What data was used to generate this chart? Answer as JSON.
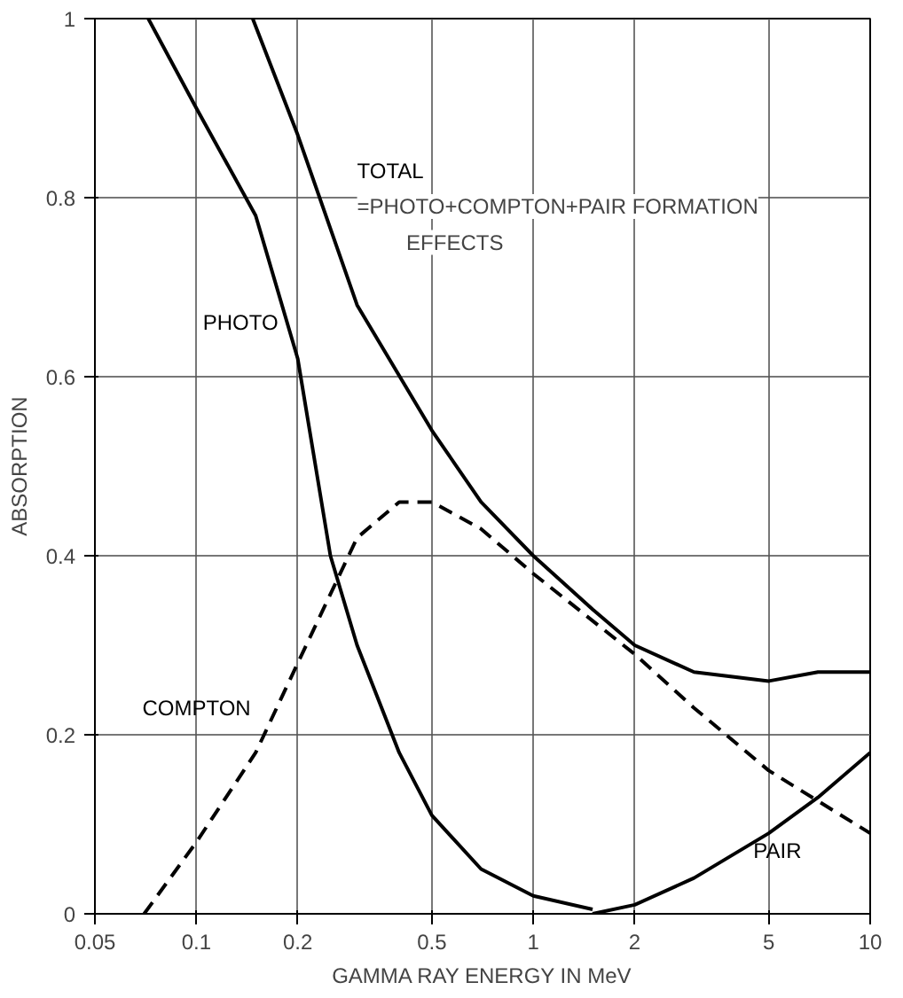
{
  "chart_data": {
    "type": "line",
    "xlabel": "GAMMA RAY ENERGY IN MeV",
    "ylabel": "ABSORPTION",
    "log": "x",
    "xlim": [
      0.05,
      10
    ],
    "ylim": [
      0,
      1
    ],
    "xticks": [
      0.05,
      0.1,
      0.2,
      0.5,
      1,
      2,
      5,
      10
    ],
    "yticks": [
      0,
      {
        "value": 0.2,
        "label": "0.2"
      },
      {
        "value": 0.4,
        "label": "0.4"
      },
      {
        "value": 0.6,
        "label": "0.6"
      },
      {
        "value": 0.8,
        "label": "0.8"
      },
      1
    ],
    "grid": true,
    "marker": "none",
    "series": [
      {
        "name": "PHOTO",
        "color": "#000000",
        "line_style": "solid",
        "x": [
          0.072,
          0.1,
          0.15,
          0.2,
          0.25,
          0.3,
          0.4,
          0.5,
          0.7,
          1,
          1.5
        ],
        "values": [
          1,
          0.9,
          0.78,
          0.62,
          0.4,
          0.3,
          0.18,
          0.11,
          0.05,
          0.02,
          0.005
        ]
      },
      {
        "name": "COMPTON",
        "color": "#000000",
        "line_style": "dashed",
        "x": [
          0.07,
          0.1,
          0.15,
          0.2,
          0.3,
          0.4,
          0.5,
          0.7,
          1,
          2,
          3,
          5,
          10
        ],
        "values": [
          0,
          0.08,
          0.18,
          0.28,
          0.42,
          0.46,
          0.46,
          0.43,
          0.38,
          0.29,
          0.23,
          0.16,
          0.09
        ]
      },
      {
        "name": "PAIR",
        "color": "#000000",
        "line_style": "solid",
        "x": [
          1.5,
          2,
          3,
          5,
          7,
          10
        ],
        "values": [
          0,
          0.01,
          0.04,
          0.09,
          0.13,
          0.18
        ]
      },
      {
        "name": "TOTAL",
        "color": "#000000",
        "line_style": "solid",
        "x": [
          0.147,
          0.2,
          0.3,
          0.5,
          0.7,
          1,
          1.5,
          2,
          3,
          5,
          7,
          10
        ],
        "values": [
          1,
          0.87,
          0.68,
          0.54,
          0.46,
          0.4,
          0.34,
          0.3,
          0.27,
          0.26,
          0.27,
          0.27
        ]
      }
    ],
    "annotations": [
      "=PHOTO+COMPTON+PAIR FORMATION",
      "EFFECTS"
    ]
  }
}
